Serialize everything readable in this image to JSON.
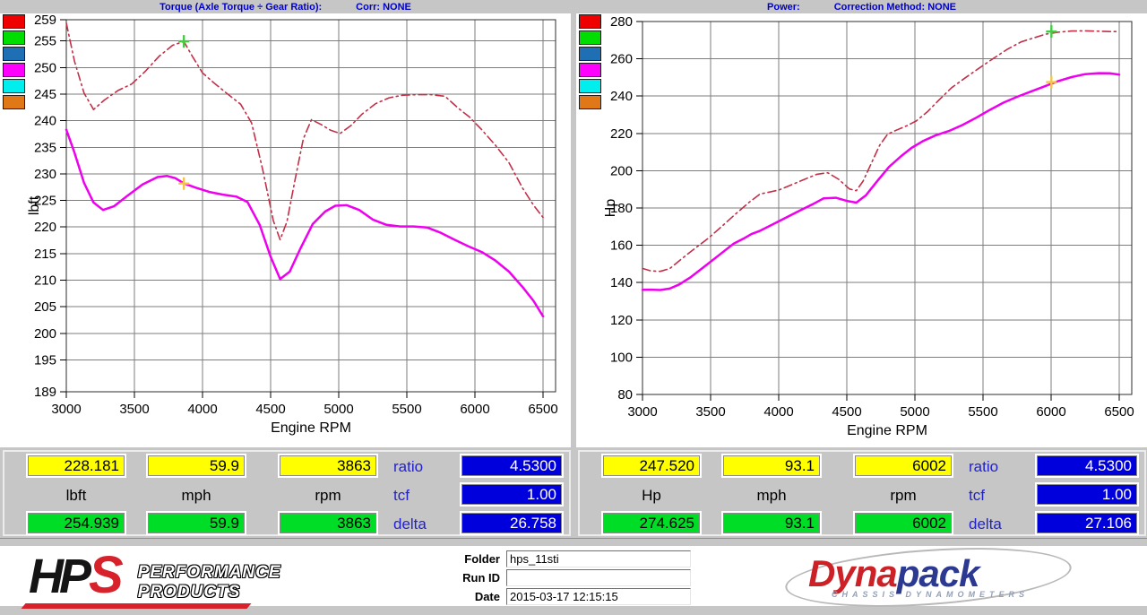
{
  "colors": {
    "background_gray": "#c6c6c6",
    "title_blue": "#0000cc",
    "solid_curve_magenta": "#ee00ee",
    "dashed_curve_crimson": "#c23048",
    "value_box_yellow": "#ffff00",
    "value_box_green": "#00dd26",
    "value_box_blue": "#0000dd",
    "readout_label_blue": "#2222cc",
    "marker_yellow": "#f2c64a",
    "marker_green": "#44cc44"
  },
  "chart_data": [
    {
      "type": "line",
      "title": "Torque (Axle Torque ÷ Gear Ratio):     Corr: NONE",
      "title_left": "Torque (Axle Torque ÷ Gear Ratio):",
      "title_right": "Corr: NONE",
      "xlabel": "Engine RPM",
      "ylabel": "lbft",
      "xlim": [
        3000,
        6500
      ],
      "ylim": [
        189,
        259
      ],
      "x_ticks": [
        3000,
        3500,
        4000,
        4500,
        5000,
        5500,
        6000,
        6500
      ],
      "y_ticks": [
        189,
        195,
        200,
        205,
        210,
        215,
        220,
        225,
        230,
        235,
        240,
        245,
        250,
        255,
        259
      ],
      "grid": true,
      "legend_colors": [
        "#ee0000",
        "#00dd00",
        "#1f6fb4",
        "#ff00ff",
        "#00eeee",
        "#e07818"
      ],
      "series": [
        {
          "name": "torque-solid-run",
          "color": "#ee00ee",
          "style": "solid",
          "width": 2.5,
          "points": [
            [
              3000,
              238.3
            ],
            [
              3060,
              234.0
            ],
            [
              3130,
              228.3
            ],
            [
              3200,
              224.6
            ],
            [
              3270,
              223.2
            ],
            [
              3350,
              223.9
            ],
            [
              3450,
              225.9
            ],
            [
              3560,
              228.0
            ],
            [
              3670,
              229.4
            ],
            [
              3740,
              229.6
            ],
            [
              3800,
              229.2
            ],
            [
              3863,
              228.2
            ],
            [
              3950,
              227.4
            ],
            [
              4050,
              226.6
            ],
            [
              4150,
              226.1
            ],
            [
              4250,
              225.7
            ],
            [
              4330,
              224.7
            ],
            [
              4420,
              220.4
            ],
            [
              4500,
              214.4
            ],
            [
              4570,
              210.2
            ],
            [
              4640,
              211.6
            ],
            [
              4720,
              216.0
            ],
            [
              4810,
              220.6
            ],
            [
              4900,
              222.9
            ],
            [
              4975,
              224.0
            ],
            [
              5060,
              224.1
            ],
            [
              5150,
              223.2
            ],
            [
              5250,
              221.4
            ],
            [
              5350,
              220.4
            ],
            [
              5450,
              220.1
            ],
            [
              5550,
              220.1
            ],
            [
              5650,
              219.9
            ],
            [
              5750,
              218.9
            ],
            [
              5850,
              217.6
            ],
            [
              5950,
              216.4
            ],
            [
              6050,
              215.3
            ],
            [
              6150,
              213.7
            ],
            [
              6250,
              211.6
            ],
            [
              6350,
              208.7
            ],
            [
              6430,
              206.1
            ],
            [
              6500,
              203.2
            ]
          ]
        },
        {
          "name": "torque-dashed-run",
          "color": "#c23048",
          "style": "dashdot",
          "width": 1.6,
          "points": [
            [
              3000,
              258.4
            ],
            [
              3060,
              251.2
            ],
            [
              3130,
              245.2
            ],
            [
              3200,
              242.1
            ],
            [
              3280,
              243.9
            ],
            [
              3380,
              245.7
            ],
            [
              3480,
              246.9
            ],
            [
              3580,
              249.3
            ],
            [
              3680,
              252.1
            ],
            [
              3780,
              254.2
            ],
            [
              3863,
              254.9
            ],
            [
              3930,
              251.9
            ],
            [
              4000,
              249.0
            ],
            [
              4080,
              247.2
            ],
            [
              4180,
              245.1
            ],
            [
              4280,
              243.1
            ],
            [
              4360,
              239.6
            ],
            [
              4440,
              231.0
            ],
            [
              4520,
              221.2
            ],
            [
              4570,
              217.6
            ],
            [
              4620,
              221.0
            ],
            [
              4680,
              229.0
            ],
            [
              4740,
              236.6
            ],
            [
              4800,
              240.2
            ],
            [
              4870,
              239.3
            ],
            [
              4940,
              238.2
            ],
            [
              5010,
              237.6
            ],
            [
              5090,
              239.1
            ],
            [
              5170,
              241.2
            ],
            [
              5270,
              243.2
            ],
            [
              5370,
              244.3
            ],
            [
              5470,
              244.8
            ],
            [
              5570,
              244.9
            ],
            [
              5680,
              244.9
            ],
            [
              5780,
              244.6
            ],
            [
              5880,
              242.3
            ],
            [
              5960,
              240.7
            ],
            [
              6050,
              238.3
            ],
            [
              6150,
              235.4
            ],
            [
              6250,
              232.1
            ],
            [
              6350,
              227.3
            ],
            [
              6430,
              224.1
            ],
            [
              6500,
              221.8
            ]
          ]
        }
      ],
      "markers": [
        {
          "name": "torque-cursor-marker-solid",
          "x": 3863,
          "y": 228.181,
          "color": "#f2c64a"
        },
        {
          "name": "torque-cursor-marker-dashed",
          "x": 3863,
          "y": 254.939,
          "color": "#44cc44"
        }
      ]
    },
    {
      "type": "line",
      "title": "Power:     Correction Method: NONE",
      "title_left": "Power:",
      "title_right": "Correction Method: NONE",
      "xlabel": "Engine RPM",
      "ylabel": "Hp",
      "xlim": [
        3000,
        6500
      ],
      "ylim": [
        80,
        280
      ],
      "x_ticks": [
        3000,
        3500,
        4000,
        4500,
        5000,
        5500,
        6000,
        6500
      ],
      "y_ticks": [
        80,
        100,
        120,
        140,
        160,
        180,
        200,
        220,
        240,
        260,
        280
      ],
      "grid": true,
      "legend_colors": [
        "#ee0000",
        "#00dd00",
        "#1f6fb4",
        "#ff00ff",
        "#00eeee",
        "#e07818"
      ],
      "series": [
        {
          "name": "power-solid-run",
          "color": "#ee00ee",
          "style": "solid",
          "width": 2.5,
          "points": [
            [
              3000,
              136.1
            ],
            [
              3060,
              136.2
            ],
            [
              3130,
              136.0
            ],
            [
              3200,
              136.8
            ],
            [
              3270,
              139.0
            ],
            [
              3350,
              142.7
            ],
            [
              3450,
              148.3
            ],
            [
              3560,
              154.6
            ],
            [
              3670,
              160.9
            ],
            [
              3740,
              163.5
            ],
            [
              3800,
              166.0
            ],
            [
              3863,
              167.8
            ],
            [
              3950,
              171.0
            ],
            [
              4050,
              174.7
            ],
            [
              4150,
              178.4
            ],
            [
              4250,
              182.0
            ],
            [
              4330,
              185.2
            ],
            [
              4420,
              185.5
            ],
            [
              4500,
              183.8
            ],
            [
              4570,
              182.9
            ],
            [
              4640,
              186.8
            ],
            [
              4720,
              194.1
            ],
            [
              4810,
              202.0
            ],
            [
              4900,
              207.9
            ],
            [
              4975,
              212.2
            ],
            [
              5060,
              215.9
            ],
            [
              5150,
              218.9
            ],
            [
              5250,
              221.3
            ],
            [
              5350,
              224.5
            ],
            [
              5450,
              228.4
            ],
            [
              5550,
              232.6
            ],
            [
              5650,
              236.5
            ],
            [
              5750,
              239.6
            ],
            [
              5850,
              242.4
            ],
            [
              5950,
              245.2
            ],
            [
              6050,
              248.0
            ],
            [
              6150,
              250.2
            ],
            [
              6250,
              251.8
            ],
            [
              6350,
              252.3
            ],
            [
              6430,
              252.2
            ],
            [
              6500,
              251.5
            ]
          ]
        },
        {
          "name": "power-dashed-run",
          "color": "#c23048",
          "style": "dashdot",
          "width": 1.6,
          "points": [
            [
              3000,
              147.6
            ],
            [
              3060,
              146.3
            ],
            [
              3130,
              146.0
            ],
            [
              3200,
              147.5
            ],
            [
              3280,
              152.3
            ],
            [
              3380,
              158.1
            ],
            [
              3480,
              163.6
            ],
            [
              3580,
              170.0
            ],
            [
              3680,
              176.6
            ],
            [
              3780,
              182.9
            ],
            [
              3863,
              187.5
            ],
            [
              3930,
              188.5
            ],
            [
              4000,
              189.6
            ],
            [
              4080,
              192.0
            ],
            [
              4180,
              195.1
            ],
            [
              4280,
              198.1
            ],
            [
              4360,
              198.9
            ],
            [
              4440,
              195.4
            ],
            [
              4520,
              190.2
            ],
            [
              4570,
              189.3
            ],
            [
              4620,
              194.4
            ],
            [
              4680,
              204.0
            ],
            [
              4740,
              213.5
            ],
            [
              4800,
              219.6
            ],
            [
              4870,
              221.9
            ],
            [
              4940,
              224.1
            ],
            [
              5010,
              226.7
            ],
            [
              5090,
              231.5
            ],
            [
              5170,
              237.4
            ],
            [
              5270,
              244.5
            ],
            [
              5370,
              249.8
            ],
            [
              5470,
              254.9
            ],
            [
              5570,
              259.9
            ],
            [
              5680,
              265.2
            ],
            [
              5780,
              269.1
            ],
            [
              5880,
              271.4
            ],
            [
              5960,
              273.2
            ],
            [
              6050,
              274.3
            ],
            [
              6150,
              274.9
            ],
            [
              6250,
              275.0
            ],
            [
              6350,
              274.8
            ],
            [
              6430,
              274.6
            ],
            [
              6500,
              274.6
            ]
          ]
        }
      ],
      "markers": [
        {
          "name": "power-cursor-marker-solid",
          "x": 6002,
          "y": 247.52,
          "color": "#f2c64a"
        },
        {
          "name": "power-cursor-marker-dashed",
          "x": 6002,
          "y": 274.625,
          "color": "#44cc44"
        }
      ]
    }
  ],
  "readouts": [
    {
      "yellow_values": [
        "228.181",
        "59.9",
        "3863"
      ],
      "units": [
        "lbft",
        "mph",
        "rpm"
      ],
      "green_values": [
        "254.939",
        "59.9",
        "3863"
      ],
      "ratio_label": "ratio",
      "ratio_value": "4.5300",
      "tcf_label": "tcf",
      "tcf_value": "1.00",
      "delta_label": "delta",
      "delta_value": "26.758"
    },
    {
      "yellow_values": [
        "247.520",
        "93.1",
        "6002"
      ],
      "units": [
        "Hp",
        "mph",
        "rpm"
      ],
      "green_values": [
        "274.625",
        "93.1",
        "6002"
      ],
      "ratio_label": "ratio",
      "ratio_value": "4.5300",
      "tcf_label": "tcf",
      "tcf_value": "1.00",
      "delta_label": "delta",
      "delta_value": "27.106"
    }
  ],
  "footer": {
    "hps": {
      "hp": "HP",
      "s": "S",
      "line1": "PERFORMANCE",
      "line2": "PRODUCTS"
    },
    "fields": [
      {
        "label": "Folder",
        "value": "hps_11sti"
      },
      {
        "label": "Run ID",
        "value": ""
      },
      {
        "label": "Date",
        "value": "2015-03-17 12:15:15"
      }
    ],
    "dynapack": {
      "dyna": "Dyna",
      "pack": "pack",
      "tagline": "CHASSIS DYNAMOMETERS"
    }
  }
}
